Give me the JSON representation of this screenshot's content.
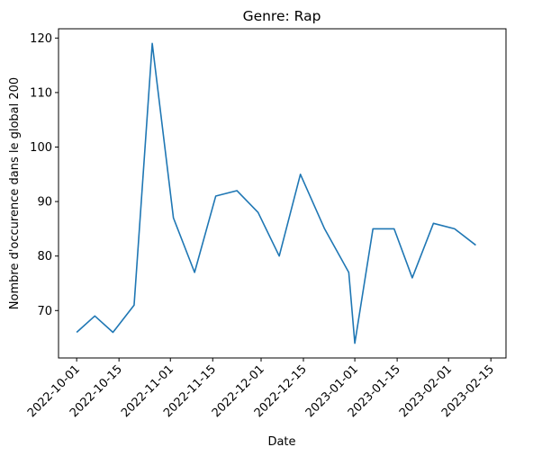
{
  "chart_data": {
    "type": "line",
    "title": "Genre: Rap",
    "xlabel": "Date",
    "ylabel": "Nombre d'occurence dans le global 200",
    "x_ticks": [
      "2022-10-01",
      "2022-10-15",
      "2022-11-01",
      "2022-11-15",
      "2022-12-01",
      "2022-12-15",
      "2023-01-01",
      "2023-01-15",
      "2023-02-01",
      "2023-02-15"
    ],
    "y_ticks": [
      70,
      80,
      90,
      100,
      110,
      120
    ],
    "xlim": [
      "2022-09-25",
      "2023-02-20"
    ],
    "ylim": [
      61.3,
      121.7
    ],
    "grid": false,
    "series": [
      {
        "color": "#1f77b4",
        "points": [
          {
            "x": "2022-10-01",
            "y": 66
          },
          {
            "x": "2022-10-07",
            "y": 69
          },
          {
            "x": "2022-10-13",
            "y": 66
          },
          {
            "x": "2022-10-20",
            "y": 71
          },
          {
            "x": "2022-10-26",
            "y": 119
          },
          {
            "x": "2022-11-02",
            "y": 87
          },
          {
            "x": "2022-11-09",
            "y": 77
          },
          {
            "x": "2022-11-16",
            "y": 91
          },
          {
            "x": "2022-11-23",
            "y": 92
          },
          {
            "x": "2022-11-30",
            "y": 88
          },
          {
            "x": "2022-12-07",
            "y": 80
          },
          {
            "x": "2022-12-14",
            "y": 95
          },
          {
            "x": "2022-12-22",
            "y": 85
          },
          {
            "x": "2022-12-30",
            "y": 77
          },
          {
            "x": "2023-01-01",
            "y": 64
          },
          {
            "x": "2023-01-07",
            "y": 85
          },
          {
            "x": "2023-01-14",
            "y": 85
          },
          {
            "x": "2023-01-20",
            "y": 76
          },
          {
            "x": "2023-01-27",
            "y": 86
          },
          {
            "x": "2023-02-03",
            "y": 85
          },
          {
            "x": "2023-02-10",
            "y": 82
          }
        ]
      }
    ]
  }
}
